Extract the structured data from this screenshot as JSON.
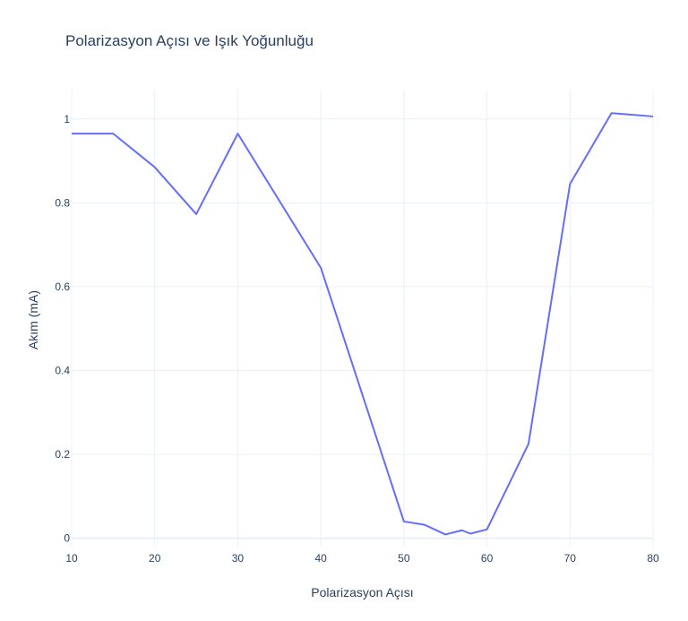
{
  "chart_data": {
    "type": "line",
    "title": "Polarizasyon Açısı ve Işık Yoğunluğu",
    "xlabel": "Polarizasyon Açısı",
    "ylabel": "Akım (mA)",
    "xlim": [
      10,
      80
    ],
    "ylim": [
      -0.02,
      1.07
    ],
    "x_ticks": [
      10,
      20,
      30,
      40,
      50,
      60,
      70,
      80
    ],
    "y_ticks": [
      0,
      0.2,
      0.4,
      0.6,
      0.8,
      1
    ],
    "grid": true,
    "colors": {
      "line": "#636efa",
      "grid": "#ebf0f8",
      "text": "#2a3f5f"
    },
    "series": [
      {
        "x": [
          10,
          15,
          20,
          25,
          30,
          40,
          50,
          52.5,
          55,
          57,
          58,
          60,
          65,
          70,
          75,
          80
        ],
        "y": [
          0.965,
          0.965,
          0.885,
          0.773,
          0.965,
          0.645,
          0.04,
          0.032,
          0.009,
          0.019,
          0.011,
          0.021,
          0.225,
          0.845,
          1.014,
          1.006
        ]
      }
    ]
  }
}
